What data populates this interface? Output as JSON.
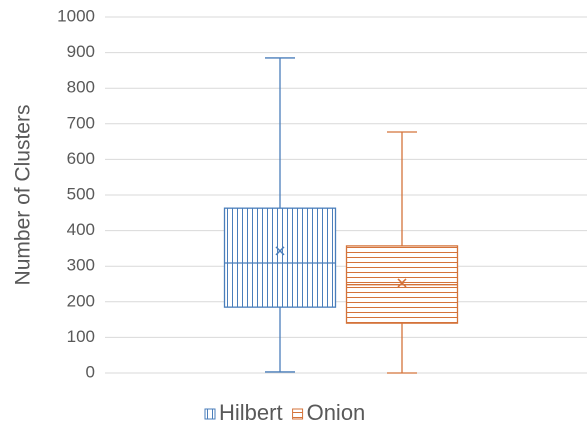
{
  "chart_data": {
    "type": "box",
    "y_label": "Number of Clusters",
    "ylim": [
      0,
      1000
    ],
    "yticks": [
      0,
      100,
      200,
      300,
      400,
      500,
      600,
      700,
      800,
      900,
      1000
    ],
    "grid": true,
    "legend": "bottom",
    "series": [
      {
        "name": "Hilbert",
        "color": "#4a7ebb",
        "hatch": "vertical",
        "min": 3,
        "q1": 185,
        "median": 309,
        "q3": 463,
        "max": 885,
        "mean": 343
      },
      {
        "name": "Onion",
        "color": "#d4733a",
        "hatch": "horizontal",
        "min": 0,
        "q1": 140,
        "median": 248,
        "q3": 357,
        "max": 677,
        "mean": 253
      }
    ]
  }
}
